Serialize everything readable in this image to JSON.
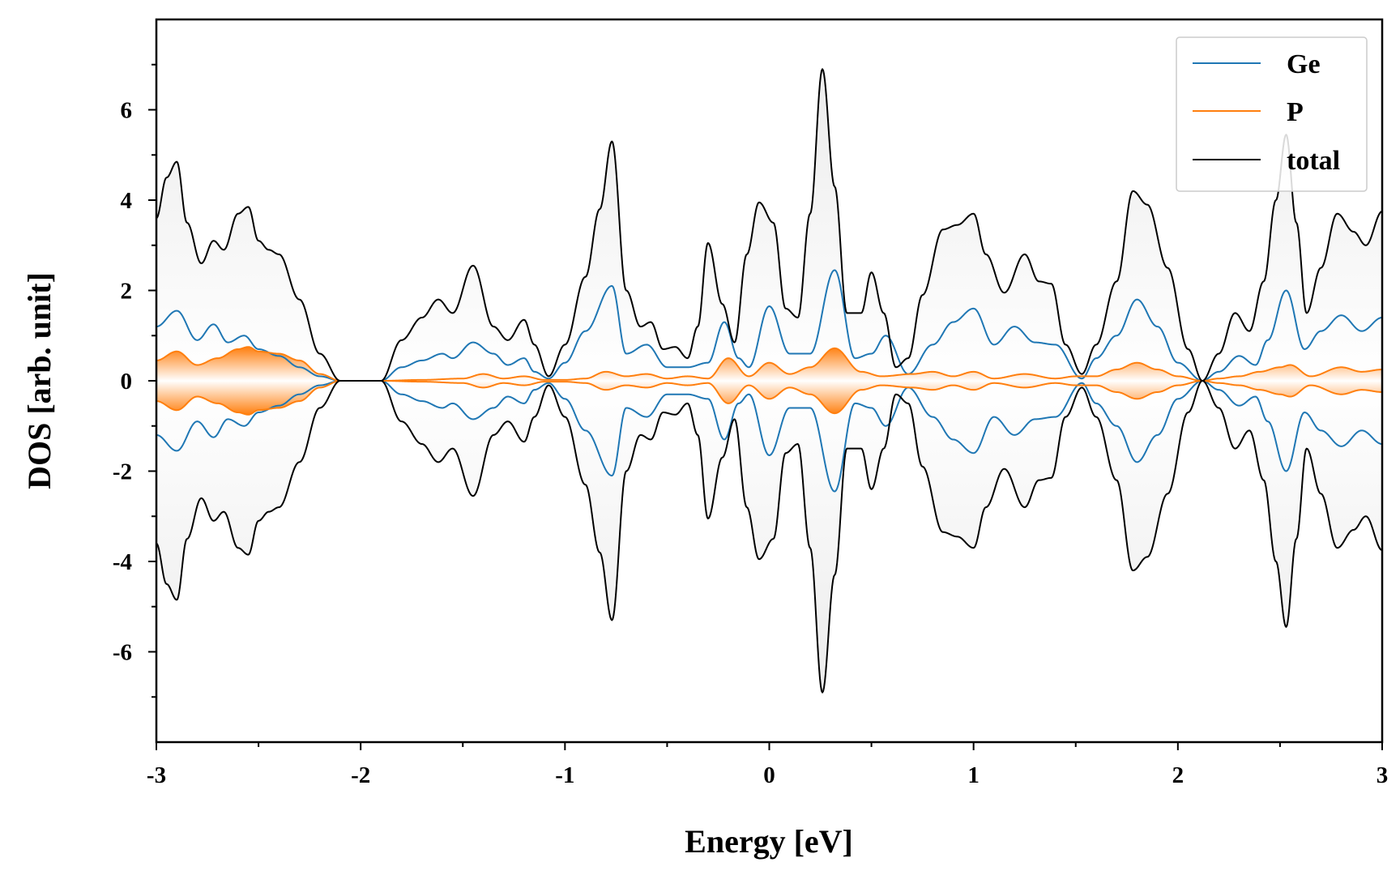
{
  "chart_data": {
    "type": "line",
    "title": "",
    "xlabel": "Energy [eV]",
    "ylabel": "DOS [arb. unit]",
    "xlim": [
      -3,
      3
    ],
    "ylim": [
      -8,
      8
    ],
    "x_ticks": [
      -3,
      -2,
      -1,
      0,
      1,
      2,
      3
    ],
    "x_tick_labels": [
      "-3",
      "-2",
      "-1",
      "0",
      "1",
      "2",
      "3"
    ],
    "y_ticks": [
      -6,
      -4,
      -2,
      0,
      2,
      4,
      6
    ],
    "y_tick_labels": [
      "-6",
      "-4",
      "-2",
      "0",
      "2",
      "4",
      "6"
    ],
    "x_minor_step": 0.5,
    "y_minor_step": 1,
    "legend_position": "top-right",
    "mirrored": true,
    "series": [
      {
        "name": "Ge",
        "color": "#1f77b4",
        "x": [
          -3.0,
          -2.9,
          -2.8,
          -2.72,
          -2.65,
          -2.57,
          -2.5,
          -2.4,
          -2.3,
          -2.2,
          -2.1,
          -2.0,
          -1.9,
          -1.8,
          -1.7,
          -1.6,
          -1.55,
          -1.45,
          -1.35,
          -1.28,
          -1.2,
          -1.15,
          -1.08,
          -1.0,
          -0.9,
          -0.77,
          -0.7,
          -0.6,
          -0.5,
          -0.4,
          -0.3,
          -0.22,
          -0.15,
          -0.1,
          0.0,
          0.1,
          0.2,
          0.32,
          0.42,
          0.5,
          0.57,
          0.68,
          0.8,
          0.9,
          1.0,
          1.1,
          1.2,
          1.3,
          1.4,
          1.53,
          1.6,
          1.7,
          1.8,
          1.9,
          2.0,
          2.12,
          2.2,
          2.3,
          2.38,
          2.44,
          2.53,
          2.62,
          2.7,
          2.8,
          2.9,
          3.0
        ],
        "values": [
          1.2,
          1.55,
          0.9,
          1.25,
          0.85,
          1.0,
          0.7,
          0.55,
          0.3,
          0.1,
          0.0,
          0.0,
          0.0,
          0.3,
          0.45,
          0.6,
          0.5,
          0.85,
          0.6,
          0.35,
          0.5,
          0.2,
          0.05,
          0.4,
          1.1,
          2.1,
          0.6,
          0.8,
          0.3,
          0.3,
          0.4,
          1.3,
          0.5,
          0.3,
          1.65,
          0.6,
          0.6,
          2.45,
          0.5,
          0.6,
          1.0,
          0.15,
          0.8,
          1.3,
          1.6,
          0.8,
          1.2,
          0.85,
          0.8,
          0.05,
          0.5,
          1.0,
          1.8,
          1.2,
          0.4,
          0.0,
          0.2,
          0.55,
          0.35,
          0.9,
          2.0,
          0.7,
          1.1,
          1.45,
          1.1,
          1.4
        ]
      },
      {
        "name": "P",
        "color": "#ff7f0e",
        "x": [
          -3.0,
          -2.9,
          -2.8,
          -2.7,
          -2.6,
          -2.55,
          -2.5,
          -2.4,
          -2.3,
          -2.2,
          -2.1,
          -2.0,
          -1.9,
          -1.7,
          -1.5,
          -1.4,
          -1.3,
          -1.2,
          -1.1,
          -1.0,
          -0.9,
          -0.8,
          -0.7,
          -0.6,
          -0.5,
          -0.4,
          -0.3,
          -0.2,
          -0.1,
          0.0,
          0.1,
          0.2,
          0.32,
          0.45,
          0.55,
          0.7,
          0.8,
          0.9,
          1.0,
          1.1,
          1.25,
          1.4,
          1.5,
          1.6,
          1.7,
          1.8,
          1.9,
          2.0,
          2.12,
          2.2,
          2.3,
          2.4,
          2.5,
          2.55,
          2.65,
          2.8,
          2.9,
          3.0
        ],
        "values": [
          0.45,
          0.65,
          0.35,
          0.5,
          0.7,
          0.75,
          0.65,
          0.6,
          0.45,
          0.15,
          0.0,
          0.0,
          0.0,
          0.02,
          0.05,
          0.15,
          0.05,
          0.1,
          0.02,
          0.02,
          0.05,
          0.2,
          0.1,
          0.15,
          0.05,
          0.1,
          0.05,
          0.5,
          0.1,
          0.4,
          0.15,
          0.3,
          0.72,
          0.2,
          0.1,
          0.15,
          0.2,
          0.1,
          0.2,
          0.05,
          0.15,
          0.05,
          0.1,
          0.1,
          0.25,
          0.4,
          0.25,
          0.1,
          0.0,
          0.05,
          0.1,
          0.2,
          0.3,
          0.35,
          0.1,
          0.3,
          0.2,
          0.25
        ]
      },
      {
        "name": "total",
        "color": "#000000",
        "x": [
          -3.0,
          -2.95,
          -2.9,
          -2.85,
          -2.78,
          -2.72,
          -2.67,
          -2.6,
          -2.55,
          -2.5,
          -2.45,
          -2.4,
          -2.3,
          -2.2,
          -2.1,
          -2.0,
          -1.9,
          -1.8,
          -1.7,
          -1.62,
          -1.55,
          -1.45,
          -1.35,
          -1.28,
          -1.2,
          -1.15,
          -1.08,
          -1.0,
          -0.9,
          -0.83,
          -0.77,
          -0.7,
          -0.63,
          -0.58,
          -0.52,
          -0.46,
          -0.4,
          -0.35,
          -0.3,
          -0.23,
          -0.17,
          -0.11,
          -0.05,
          0.02,
          0.08,
          0.14,
          0.2,
          0.26,
          0.32,
          0.38,
          0.45,
          0.5,
          0.56,
          0.62,
          0.68,
          0.75,
          0.85,
          0.92,
          1.0,
          1.06,
          1.15,
          1.25,
          1.32,
          1.38,
          1.45,
          1.53,
          1.6,
          1.7,
          1.78,
          1.85,
          1.95,
          2.05,
          2.12,
          2.2,
          2.28,
          2.35,
          2.42,
          2.48,
          2.53,
          2.58,
          2.63,
          2.7,
          2.78,
          2.86,
          2.92,
          3.0
        ],
        "values": [
          3.6,
          4.5,
          4.85,
          3.5,
          2.6,
          3.1,
          2.9,
          3.7,
          3.85,
          3.1,
          2.9,
          2.8,
          1.8,
          0.6,
          0.0,
          0.0,
          0.0,
          0.9,
          1.4,
          1.8,
          1.5,
          2.55,
          1.2,
          0.9,
          1.35,
          0.8,
          0.1,
          0.8,
          2.3,
          3.8,
          5.3,
          2.0,
          1.2,
          1.3,
          0.7,
          0.75,
          0.5,
          1.2,
          3.05,
          1.7,
          0.85,
          2.8,
          3.95,
          3.5,
          1.6,
          1.4,
          3.7,
          6.9,
          4.3,
          1.5,
          1.5,
          2.4,
          1.5,
          0.3,
          0.5,
          1.9,
          3.35,
          3.45,
          3.7,
          2.8,
          1.95,
          2.8,
          2.2,
          2.15,
          0.8,
          0.15,
          0.8,
          2.2,
          4.2,
          3.9,
          2.5,
          0.7,
          0.0,
          0.6,
          1.5,
          1.1,
          2.2,
          4.0,
          5.45,
          3.5,
          1.5,
          2.5,
          3.7,
          3.3,
          3.0,
          3.75
        ]
      }
    ]
  }
}
